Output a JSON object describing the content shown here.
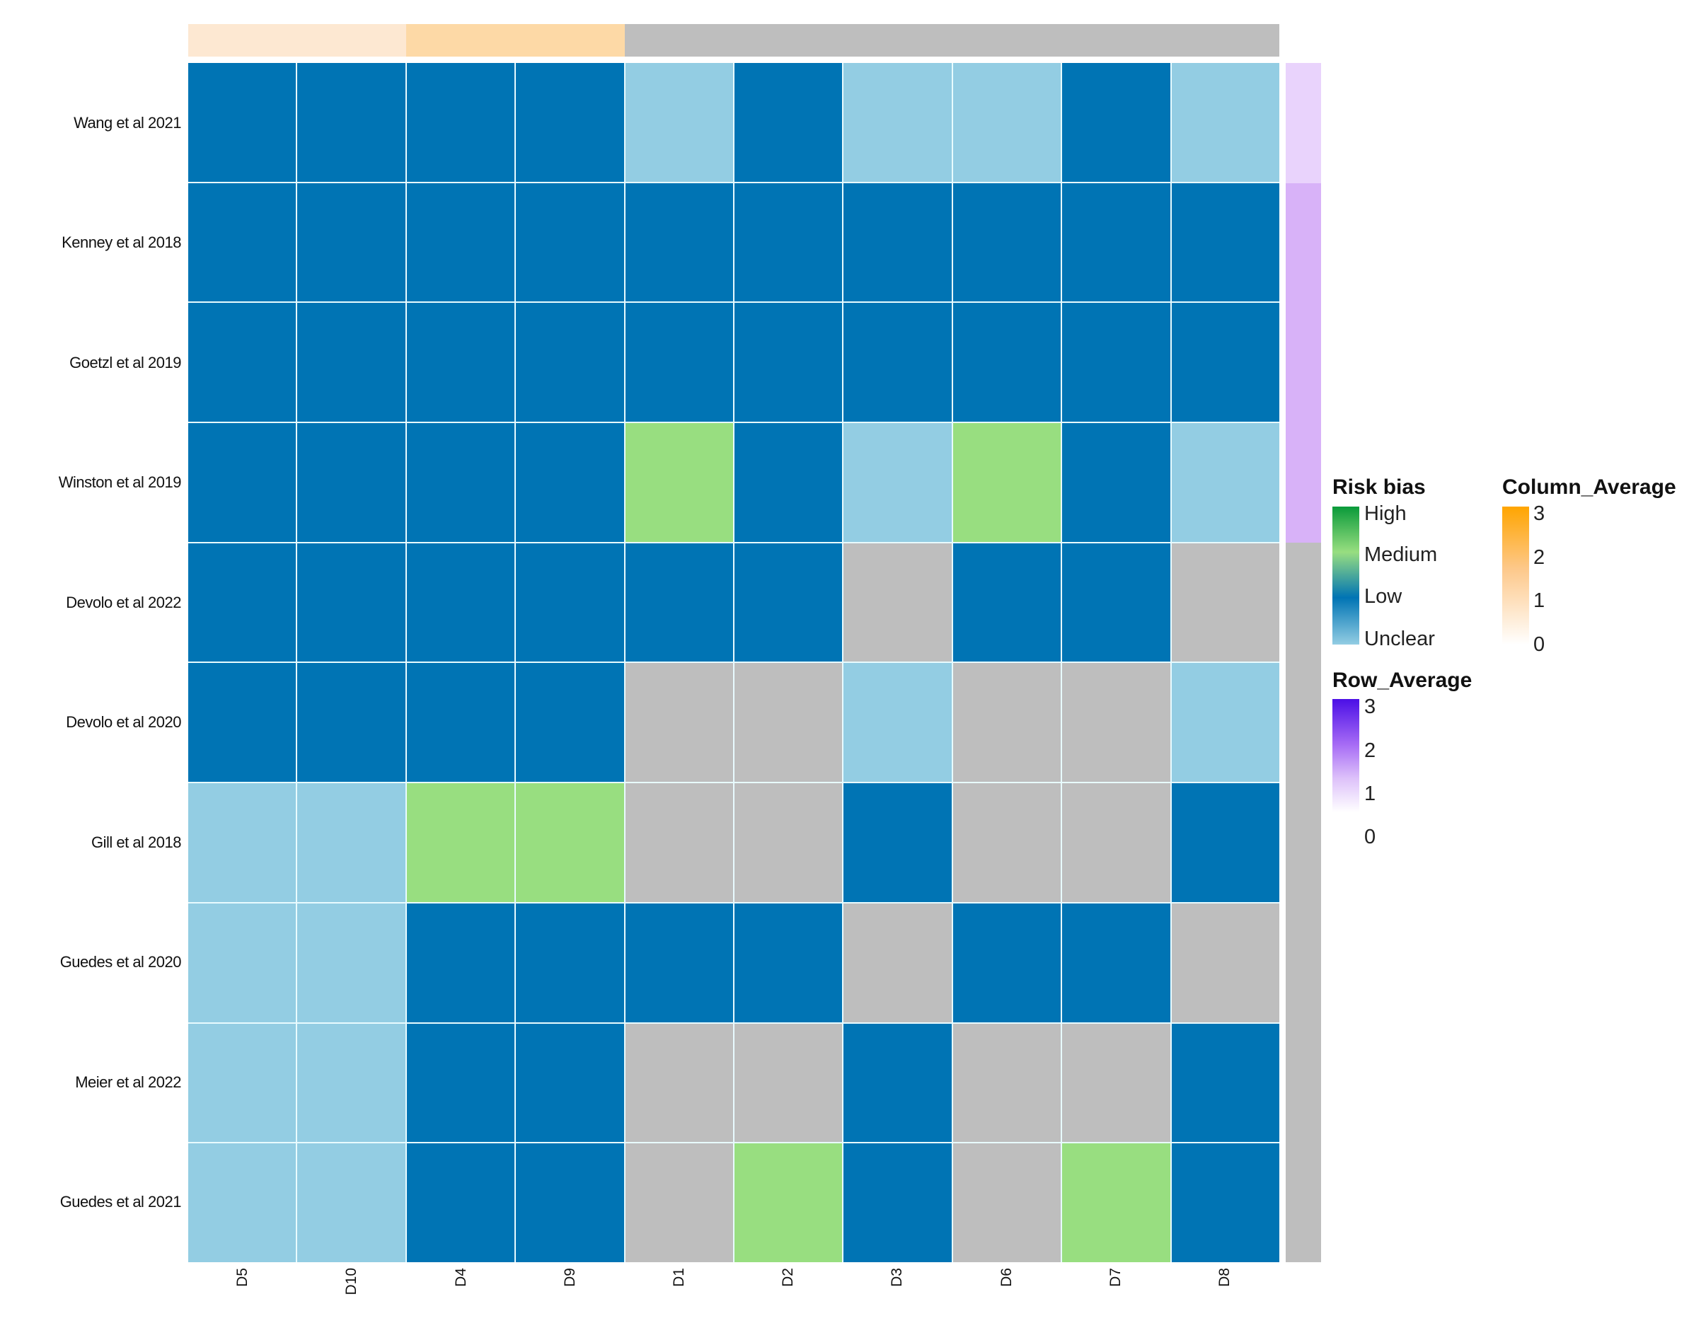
{
  "chart_data": {
    "type": "heatmap",
    "title": "",
    "xlabel": "",
    "ylabel": "",
    "columns": [
      "D5",
      "D10",
      "D4",
      "D9",
      "D1",
      "D2",
      "D3",
      "D6",
      "D7",
      "D8"
    ],
    "rows": [
      "Wang et al 2021",
      "Kenney et al 2018",
      "Goetzl et al 2019",
      "Winston et al 2019",
      "Devolo et al 2022",
      "Devolo et al 2020",
      "Gill et al 2018",
      "Guedes et al 2020",
      "Meier et al 2022",
      "Guedes et al 2021"
    ],
    "categories": [
      "High",
      "Medium",
      "Low",
      "Unclear",
      "NA"
    ],
    "values": [
      [
        "Low",
        "Low",
        "Low",
        "Low",
        "Unclear",
        "Low",
        "Unclear",
        "Unclear",
        "Low",
        "Unclear"
      ],
      [
        "Low",
        "Low",
        "Low",
        "Low",
        "Low",
        "Low",
        "Low",
        "Low",
        "Low",
        "Low"
      ],
      [
        "Low",
        "Low",
        "Low",
        "Low",
        "Low",
        "Low",
        "Low",
        "Low",
        "Low",
        "Low"
      ],
      [
        "Low",
        "Low",
        "Low",
        "Low",
        "Medium",
        "Low",
        "Unclear",
        "Medium",
        "Low",
        "Unclear"
      ],
      [
        "Low",
        "Low",
        "Low",
        "Low",
        "Low",
        "Low",
        "NA",
        "Low",
        "Low",
        "NA"
      ],
      [
        "Low",
        "Low",
        "Low",
        "Low",
        "NA",
        "NA",
        "Unclear",
        "NA",
        "NA",
        "Unclear"
      ],
      [
        "Unclear",
        "Unclear",
        "Medium",
        "Medium",
        "NA",
        "NA",
        "Low",
        "NA",
        "NA",
        "Low"
      ],
      [
        "Unclear",
        "Unclear",
        "Low",
        "Low",
        "Low",
        "Low",
        "NA",
        "Low",
        "Low",
        "NA"
      ],
      [
        "Unclear",
        "Unclear",
        "Low",
        "Low",
        "NA",
        "NA",
        "Low",
        "NA",
        "NA",
        "Low"
      ],
      [
        "Unclear",
        "Unclear",
        "Low",
        "Low",
        "NA",
        "Medium",
        "Low",
        "NA",
        "Medium",
        "Low"
      ]
    ],
    "column_average": [
      0.3,
      0.3,
      0.6,
      0.6,
      null,
      null,
      null,
      null,
      null,
      null
    ],
    "row_average": [
      0.4,
      0.8,
      0.8,
      0.8,
      null,
      null,
      null,
      null,
      null,
      null
    ],
    "legends": {
      "risk_bias": {
        "title": "Risk bias",
        "labels": [
          "High",
          "Medium",
          "Low",
          "Unclear"
        ]
      },
      "row_average": {
        "title": "Row_Average",
        "ticks": [
          "3",
          "2",
          "1",
          "0"
        ]
      },
      "column_average": {
        "title": "Column_Average",
        "ticks": [
          "3",
          "2",
          "1",
          "0"
        ]
      }
    }
  },
  "colors": {
    "Low": "#0074B4",
    "Unclear": "#93CDE3",
    "Medium": "#98DE80",
    "High": "#0A9A3A",
    "NA": "#BEBEBE",
    "col_annot": [
      "#FDE8D2",
      "#FDE8D2",
      "#FDD9A6",
      "#FDD9A6",
      "#BEBEBE",
      "#BEBEBE",
      "#BEBEBE",
      "#BEBEBE",
      "#BEBEBE",
      "#BEBEBE"
    ],
    "row_annot": [
      "#E9D3FC",
      "#D8B2F8",
      "#D8B2F8",
      "#D8B2F8",
      "#BEBEBE",
      "#BEBEBE",
      "#BEBEBE",
      "#BEBEBE",
      "#BEBEBE",
      "#BEBEBE"
    ]
  }
}
